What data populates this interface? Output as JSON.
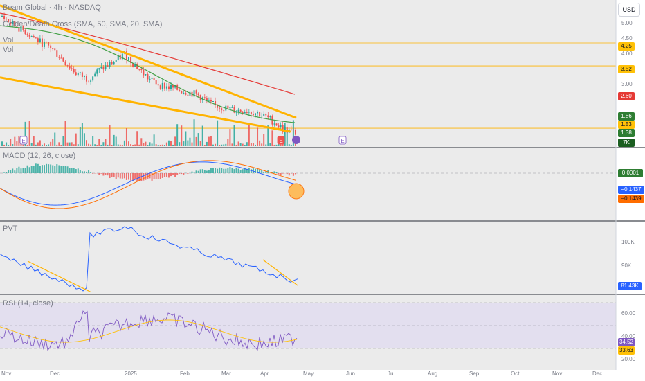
{
  "header": {
    "symbol_title": "Beam Global · 4h · NASDAQ",
    "indicator_cross": "Golden/Death Cross (SMA, 50, SMA, 20, SMA)",
    "indicator_vol_short": "Vol",
    "currency_button": "USD"
  },
  "colors": {
    "panel_bg": "#ebebeb",
    "up": "#26a69a",
    "down": "#ef5350",
    "sma_long": "#e53935",
    "sma_mid": "#43a047",
    "trendline": "#ffb300",
    "macd": "#2962ff",
    "signal": "#ff6d00",
    "rsi_line": "#7e57c2",
    "rsi_ma": "#ffc107",
    "pvt_line": "#2962ff"
  },
  "price_axis": {
    "ticks": [
      "5.00",
      "4.50",
      "4.00",
      "3.00"
    ],
    "price_labels": [
      {
        "text": "4.25",
        "bg": "#ffc107",
        "fg": "#131722"
      },
      {
        "text": "3.52",
        "bg": "#ffc107",
        "fg": "#131722"
      },
      {
        "text": "2.60",
        "bg": "#e53935",
        "fg": "#ffffff"
      },
      {
        "text": "1.86",
        "bg": "#2e7d32",
        "fg": "#ffffff"
      },
      {
        "text": "1.53",
        "bg": "#ffc107",
        "fg": "#131722"
      },
      {
        "text": "1.38",
        "bg": "#2e7d32",
        "fg": "#ffffff"
      },
      {
        "text": "7K",
        "bg": "#1b5e20",
        "fg": "#ffffff"
      }
    ]
  },
  "macd_panel": {
    "title": "MACD (12, 26, close)",
    "labels": [
      {
        "text": "0.0001",
        "bg": "#2e7d32",
        "fg": "#ffffff"
      },
      {
        "text": "−0.1437",
        "bg": "#2962ff",
        "fg": "#ffffff"
      },
      {
        "text": "−0.1439",
        "bg": "#ff6d00",
        "fg": "#131722"
      }
    ]
  },
  "pvt_panel": {
    "title": "PVT",
    "ticks": [
      "100K",
      "90K"
    ],
    "label": {
      "text": "81.43K",
      "bg": "#2962ff",
      "fg": "#ffffff"
    }
  },
  "rsi_panel": {
    "title": "RSI (14, close)",
    "ticks": [
      "60.00",
      "40.00",
      "20.00"
    ],
    "labels": [
      {
        "text": "34.52",
        "bg": "#7e57c2",
        "fg": "#ffffff"
      },
      {
        "text": "33.63",
        "bg": "#ffc107",
        "fg": "#131722"
      }
    ]
  },
  "time_axis": [
    "Nov",
    "Dec",
    "2025",
    "Feb",
    "Mar",
    "Apr",
    "May",
    "Jun",
    "Jul",
    "Aug",
    "Sep",
    "Oct",
    "Nov",
    "Dec"
  ],
  "event_markers": [
    "E",
    "E",
    "E"
  ],
  "chart_data": {
    "type": "line",
    "x_labels": [
      "Nov",
      "Dec",
      "2025",
      "Feb",
      "Mar",
      "Apr"
    ],
    "horizontal_levels": [
      4.25,
      3.52,
      1.53
    ],
    "last_values": {
      "close": 1.38,
      "sma_50": 1.86,
      "sma_200": 2.6,
      "volume": "7K"
    },
    "price_series": {
      "name": "close",
      "x": [
        "2024-11-01",
        "2024-11-08",
        "2024-11-15",
        "2024-11-22",
        "2024-11-29",
        "2024-12-06",
        "2024-12-13",
        "2024-12-20",
        "2024-12-27",
        "2025-01-03",
        "2025-01-10",
        "2025-01-17",
        "2025-01-24",
        "2025-01-31",
        "2025-02-07",
        "2025-02-14",
        "2025-02-21",
        "2025-02-28",
        "2025-03-07",
        "2025-03-14",
        "2025-03-21",
        "2025-03-28",
        "2025-04-04",
        "2025-04-11",
        "2025-04-18"
      ],
      "y": [
        5.1,
        4.8,
        4.6,
        4.3,
        4.1,
        3.7,
        3.3,
        3.1,
        3.4,
        3.6,
        3.9,
        3.5,
        3.1,
        2.9,
        2.8,
        2.7,
        2.6,
        2.3,
        2.2,
        2.1,
        2.1,
        2.0,
        1.8,
        1.5,
        1.38
      ]
    },
    "macd": {
      "macd": -0.1437,
      "signal": -0.1439,
      "histogram": 0.0001
    },
    "pvt_last": 81430,
    "rsi": {
      "rsi": 34.52,
      "rsi_ma": 33.63
    }
  }
}
